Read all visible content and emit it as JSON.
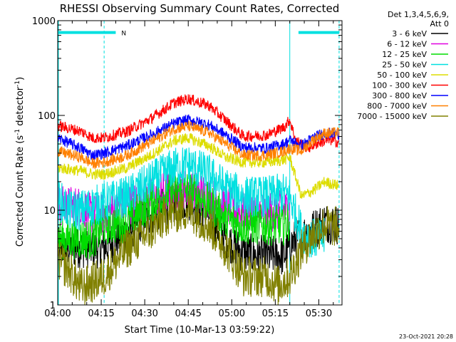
{
  "chart_data": {
    "type": "line",
    "title": "RHESSI Observing Summary Count Rates, Corrected",
    "xlabel": "Start Time (10-Mar-13 03:59:22)",
    "ylabel_main": "Corrected Count Rate (s",
    "ylabel_sup1": "-1",
    "ylabel_mid": " detector",
    "ylabel_sup2": "-1",
    "ylabel_end": ")",
    "y_scale": "log",
    "ylim": [
      1,
      1000
    ],
    "xlim_minutes": [
      0,
      98
    ],
    "x_ticks": [
      {
        "m": 0,
        "label": "04:00"
      },
      {
        "m": 15,
        "label": "04:15"
      },
      {
        "m": 30,
        "label": "04:30"
      },
      {
        "m": 45,
        "label": "04:45"
      },
      {
        "m": 60,
        "label": "05:00"
      },
      {
        "m": 75,
        "label": "05:15"
      },
      {
        "m": 90,
        "label": "05:30"
      }
    ],
    "y_ticks": [
      {
        "v": 1,
        "label": "1"
      },
      {
        "v": 10,
        "label": "10"
      },
      {
        "v": 100,
        "label": "100"
      },
      {
        "v": 1000,
        "label": "1000"
      }
    ],
    "legend_header_1": "Det 1,3,4,5,6,9,",
    "legend_header_2": "Att 0",
    "legend_position": "right",
    "timestamp": "23-Oct-2021 20:28",
    "night_marker": "N",
    "series": [
      {
        "name": "3 - 6 keV",
        "color": "#000000",
        "points": [
          [
            0,
            4
          ],
          [
            8,
            4
          ],
          [
            16,
            4
          ],
          [
            24,
            6
          ],
          [
            32,
            9
          ],
          [
            40,
            12
          ],
          [
            45,
            13
          ],
          [
            52,
            9
          ],
          [
            58,
            5
          ],
          [
            64,
            3.5
          ],
          [
            72,
            3.3
          ],
          [
            78,
            3.3
          ],
          [
            82,
            5
          ],
          [
            87,
            6
          ],
          [
            92,
            7.5
          ],
          [
            97,
            7
          ]
        ]
      },
      {
        "name": "6 - 12 keV",
        "color": "#e000e0",
        "points": [
          [
            0,
            11
          ],
          [
            8,
            11
          ],
          [
            12,
            9
          ],
          [
            16,
            9
          ],
          [
            22,
            11
          ],
          [
            30,
            13
          ],
          [
            38,
            16
          ],
          [
            45,
            17
          ],
          [
            52,
            14
          ],
          [
            58,
            11
          ],
          [
            64,
            9.5
          ],
          [
            72,
            9.5
          ],
          [
            78,
            10
          ],
          [
            80,
            10
          ]
        ]
      },
      {
        "name": "12 - 25 keV",
        "color": "#00dd00",
        "points": [
          [
            0,
            5
          ],
          [
            8,
            5
          ],
          [
            12,
            5
          ],
          [
            16,
            7
          ],
          [
            24,
            7.5
          ],
          [
            32,
            12
          ],
          [
            38,
            15
          ],
          [
            45,
            16
          ],
          [
            52,
            12
          ],
          [
            58,
            8
          ],
          [
            64,
            7
          ],
          [
            72,
            7
          ],
          [
            78,
            7
          ],
          [
            80,
            8
          ]
        ]
      },
      {
        "name": "25 - 50 keV",
        "color": "#00e0e0",
        "points": [
          [
            0,
            13
          ],
          [
            4,
            10
          ],
          [
            8,
            10
          ],
          [
            12,
            11
          ],
          [
            16,
            12
          ],
          [
            24,
            14
          ],
          [
            32,
            20
          ],
          [
            40,
            28
          ],
          [
            45,
            30
          ],
          [
            52,
            24
          ],
          [
            58,
            17
          ],
          [
            64,
            14
          ],
          [
            72,
            14
          ],
          [
            78,
            15
          ],
          [
            80,
            14
          ],
          [
            84,
            6
          ],
          [
            88,
            5
          ],
          [
            92,
            5
          ]
        ]
      },
      {
        "name": "50 - 100 keV",
        "color": "#dddd00",
        "points": [
          [
            0,
            28
          ],
          [
            8,
            26
          ],
          [
            12,
            24
          ],
          [
            16,
            24
          ],
          [
            24,
            28
          ],
          [
            32,
            38
          ],
          [
            40,
            54
          ],
          [
            45,
            58
          ],
          [
            52,
            48
          ],
          [
            58,
            36
          ],
          [
            64,
            32
          ],
          [
            72,
            32
          ],
          [
            78,
            34
          ],
          [
            80,
            36
          ],
          [
            84,
            14
          ],
          [
            88,
            16
          ],
          [
            92,
            20
          ],
          [
            97,
            18
          ]
        ]
      },
      {
        "name": "100 - 300 keV",
        "color": "#ff0000",
        "points": [
          [
            0,
            78
          ],
          [
            8,
            68
          ],
          [
            12,
            58
          ],
          [
            16,
            58
          ],
          [
            24,
            68
          ],
          [
            32,
            92
          ],
          [
            40,
            135
          ],
          [
            45,
            150
          ],
          [
            52,
            128
          ],
          [
            58,
            88
          ],
          [
            64,
            60
          ],
          [
            72,
            62
          ],
          [
            78,
            75
          ],
          [
            80,
            90
          ],
          [
            82,
            55
          ],
          [
            86,
            45
          ],
          [
            90,
            52
          ],
          [
            94,
            55
          ],
          [
            97,
            52
          ]
        ]
      },
      {
        "name": "300 - 800 keV",
        "color": "#0000ff",
        "points": [
          [
            0,
            58
          ],
          [
            8,
            45
          ],
          [
            12,
            38
          ],
          [
            16,
            40
          ],
          [
            24,
            48
          ],
          [
            32,
            62
          ],
          [
            40,
            82
          ],
          [
            45,
            90
          ],
          [
            52,
            80
          ],
          [
            58,
            62
          ],
          [
            64,
            46
          ],
          [
            72,
            45
          ],
          [
            78,
            50
          ],
          [
            80,
            55
          ],
          [
            84,
            48
          ],
          [
            88,
            58
          ],
          [
            92,
            65
          ],
          [
            97,
            64
          ]
        ]
      },
      {
        "name": "800 - 7000 keV",
        "color": "#ff8000",
        "points": [
          [
            0,
            42
          ],
          [
            8,
            36
          ],
          [
            12,
            31
          ],
          [
            16,
            32
          ],
          [
            24,
            38
          ],
          [
            32,
            52
          ],
          [
            40,
            72
          ],
          [
            45,
            77
          ],
          [
            52,
            66
          ],
          [
            58,
            50
          ],
          [
            64,
            38
          ],
          [
            72,
            38
          ],
          [
            78,
            42
          ],
          [
            80,
            45
          ],
          [
            84,
            42
          ],
          [
            88,
            55
          ],
          [
            92,
            65
          ],
          [
            97,
            66
          ]
        ]
      },
      {
        "name": "7000 - 15000 keV",
        "color": "#808000",
        "points": [
          [
            0,
            3
          ],
          [
            4,
            2.3
          ],
          [
            8,
            1.5
          ],
          [
            16,
            2
          ],
          [
            24,
            4
          ],
          [
            32,
            6
          ],
          [
            38,
            9
          ],
          [
            45,
            10
          ],
          [
            52,
            7
          ],
          [
            58,
            4
          ],
          [
            64,
            2
          ],
          [
            72,
            2
          ],
          [
            76,
            1.6
          ],
          [
            80,
            2
          ],
          [
            84,
            3.8
          ],
          [
            88,
            5.5
          ],
          [
            92,
            7
          ],
          [
            97,
            6.5
          ]
        ]
      }
    ],
    "attenuator_level_bar": {
      "color": "#00e0e0",
      "value": 750,
      "segments": [
        [
          0,
          20
        ],
        [
          83,
          97
        ]
      ]
    },
    "dashed_markers_minutes": [
      16,
      97
    ],
    "solid_markers_minutes": [
      80
    ]
  }
}
